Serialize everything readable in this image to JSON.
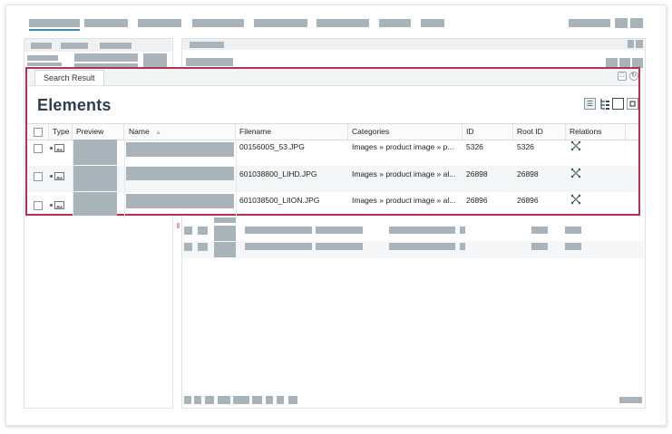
{
  "search_window": {
    "tab_label": "Search Result",
    "title": "Elements",
    "columns": [
      "Type",
      "Preview",
      "Name",
      "Filename",
      "Categories",
      "ID",
      "Root ID",
      "Relations"
    ],
    "rows": [
      {
        "filename": "0015600S_53.JPG",
        "categories": "Images » product image » p...",
        "id": "5326",
        "root_id": "5326"
      },
      {
        "filename": "601038800_LIHD.JPG",
        "categories": "Images » product image » al...",
        "id": "26898",
        "root_id": "26898"
      },
      {
        "filename": "601038500_LIION.JPG",
        "categories": "Images » product image » al...",
        "id": "26896",
        "root_id": "26896"
      }
    ]
  },
  "icons": {
    "type": "image-file-icon",
    "relations": "relations-network-icon",
    "sort": "sort-ascending-icon",
    "view_modes": [
      "list-view-icon",
      "tree-view-icon",
      "tile-view-icon",
      "detail-view-icon"
    ],
    "tab_actions": [
      "maximize-icon",
      "refresh-icon"
    ]
  },
  "colors": {
    "highlight_border": "#b0344f",
    "nav_underline": "#3b8fa8",
    "title": "#2c3e50",
    "placeholder": "#a8b3ba"
  }
}
